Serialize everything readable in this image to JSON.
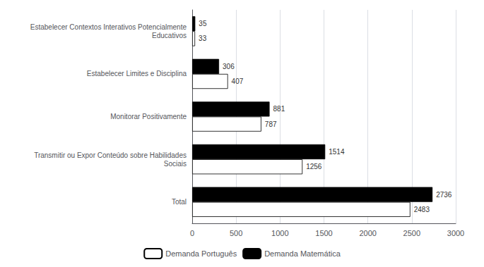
{
  "chart_data": {
    "type": "bar",
    "orientation": "horizontal",
    "categories": [
      "Estabelecer Contextos Interativos Potencialmente\nEducativos",
      "Estabelecer Limites e Disciplina",
      "Monitorar Positivamente",
      "Transmitir ou Expor Conteúdo sobre Habilidades\nSociais",
      "Total"
    ],
    "series": [
      {
        "name": "Demanda Português",
        "color": "#ffffff",
        "values": [
          33,
          407,
          787,
          1256,
          2483
        ]
      },
      {
        "name": "Demanda Matemática",
        "color": "#000000",
        "values": [
          35,
          306,
          881,
          1514,
          2736
        ]
      }
    ],
    "xlim": [
      0,
      3000
    ],
    "xticks": [
      0,
      500,
      1000,
      1500,
      2000,
      2500,
      3000
    ],
    "grid": true,
    "legend": "bottom",
    "data_labels": true
  }
}
